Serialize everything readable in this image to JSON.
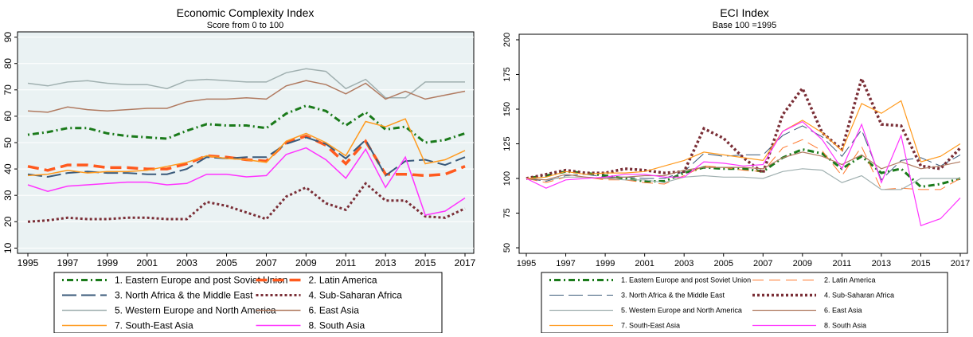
{
  "chart_data": [
    {
      "type": "line",
      "title": "Economic Complexity Index",
      "subtitle": "Score from 0 to 100",
      "x": [
        1995,
        1996,
        1997,
        1998,
        1999,
        2000,
        2001,
        2002,
        2003,
        2004,
        2005,
        2006,
        2007,
        2008,
        2009,
        2010,
        2011,
        2012,
        2013,
        2014,
        2015,
        2016,
        2017
      ],
      "xlim": [
        1995,
        2017
      ],
      "xticks": [
        1995,
        1997,
        1999,
        2001,
        2003,
        2005,
        2007,
        2009,
        2011,
        2013,
        2015,
        2017
      ],
      "ylim": [
        8,
        92
      ],
      "yticks": [
        10,
        20,
        30,
        40,
        50,
        60,
        70,
        80,
        90
      ],
      "grid": true,
      "series": [
        {
          "name": "1. Eastern Europe and post Soviet Union",
          "color": "#1a7a1a",
          "dash": "2 4 8 4",
          "width": 3,
          "values": [
            53,
            54,
            55.5,
            55.5,
            53.5,
            52.5,
            52,
            51.5,
            54.5,
            57,
            56.5,
            56.5,
            55.5,
            61,
            64,
            62,
            56.5,
            61.5,
            55,
            56,
            50,
            51,
            53.5
          ]
        },
        {
          "name": "2. Latin America",
          "color": "#ff5a1e",
          "dash": "14 7",
          "width": 3.5,
          "values": [
            41,
            39.5,
            41.5,
            41.5,
            40.5,
            40.5,
            40,
            40,
            42,
            45,
            44.5,
            43.5,
            43,
            50,
            52.5,
            49,
            42,
            50.5,
            38,
            38,
            37.5,
            38,
            41
          ]
        },
        {
          "name": "3. North Africa & the Middle East",
          "color": "#3a5a7a",
          "dash": "18 6",
          "width": 2,
          "values": [
            38,
            37,
            38.5,
            39,
            38.5,
            38.5,
            38,
            38,
            40,
            44.5,
            44,
            44.5,
            44.5,
            49.5,
            52,
            49.5,
            44,
            51,
            37.5,
            43,
            43.5,
            41.5,
            44.5
          ]
        },
        {
          "name": "4. Sub-Saharan Africa",
          "color": "#7a2e36",
          "dash": "3 3",
          "width": 3,
          "values": [
            20,
            20.5,
            21.5,
            21,
            21,
            21.5,
            21.5,
            21,
            21,
            27.5,
            26,
            23.5,
            21,
            29.5,
            33,
            27,
            24.5,
            34.5,
            28,
            28,
            22,
            21.5,
            25
          ]
        },
        {
          "name": "5. Western Europe and North America",
          "color": "#a0b0b0",
          "dash": "",
          "width": 1.5,
          "values": [
            72.5,
            71.5,
            73,
            73.5,
            72.5,
            72,
            72,
            70.5,
            73.5,
            74,
            73.5,
            73,
            73,
            76.5,
            78,
            77,
            70.5,
            74,
            67,
            67,
            73,
            73,
            73
          ]
        },
        {
          "name": "6. East Asia",
          "color": "#b07a60",
          "dash": "",
          "width": 1.5,
          "values": [
            62,
            61.5,
            63.5,
            62.5,
            62,
            62.5,
            63,
            63,
            65.5,
            66.5,
            66.5,
            67,
            66.5,
            71.5,
            73.5,
            72,
            68.5,
            72.5,
            66.5,
            69.5,
            66.5,
            68,
            69.5
          ]
        },
        {
          "name": "7. South-East Asia",
          "color": "#ff9a1e",
          "dash": "",
          "width": 1.5,
          "values": [
            37.5,
            38,
            39.5,
            38.5,
            39,
            39,
            39.5,
            41,
            42.5,
            45,
            44,
            43.5,
            42.5,
            50.5,
            53.5,
            50,
            45,
            58,
            56,
            59,
            42,
            43.5,
            47
          ]
        },
        {
          "name": "8. South Asia",
          "color": "#ff33ff",
          "dash": "",
          "width": 1.5,
          "values": [
            34,
            31.5,
            33.5,
            34,
            34.5,
            35,
            35,
            34,
            34.5,
            38,
            38,
            37,
            37.5,
            45.5,
            48,
            43.5,
            36.5,
            47.5,
            33,
            44.5,
            22.5,
            24,
            29
          ]
        }
      ]
    },
    {
      "type": "line",
      "title": "ECI Index",
      "subtitle": "Base 100 =1995",
      "x": [
        1995,
        1996,
        1997,
        1998,
        1999,
        2000,
        2001,
        2002,
        2003,
        2004,
        2005,
        2006,
        2007,
        2008,
        2009,
        2010,
        2011,
        2012,
        2013,
        2014,
        2015,
        2016,
        2017
      ],
      "xlim": [
        1995,
        2017
      ],
      "xticks": [
        1995,
        1997,
        1999,
        2001,
        2003,
        2005,
        2007,
        2009,
        2011,
        2013,
        2015,
        2017
      ],
      "ylim": [
        46,
        204
      ],
      "yticks": [
        50,
        75,
        100,
        125,
        150,
        175,
        200
      ],
      "grid": false,
      "series": [
        {
          "name": "1. Eastern Europe and post Soviet Union",
          "color": "#1a7a1a",
          "dash": "2 4 8 4",
          "width": 3,
          "values": [
            100,
            102,
            105,
            104,
            102,
            100,
            98,
            98,
            104,
            108,
            107,
            107,
            105,
            115,
            121,
            118,
            107,
            116,
            104,
            107,
            94,
            96,
            100
          ]
        },
        {
          "name": "2. Latin America",
          "color": "#ff7a30",
          "dash": "14 7",
          "width": 1,
          "values": [
            100,
            97,
            101,
            101,
            99,
            99,
            97,
            96,
            102,
            109,
            108,
            106,
            105,
            122,
            128,
            120,
            102,
            123,
            92,
            93,
            92,
            92,
            100
          ]
        },
        {
          "name": "3. North Africa & the Middle East",
          "color": "#3a5a7a",
          "dash": "18 6",
          "width": 1,
          "values": [
            100,
            98,
            102,
            103,
            101,
            101,
            100,
            100,
            105,
            118,
            116,
            117,
            117,
            131,
            138,
            130,
            116,
            135,
            99,
            113,
            115,
            109,
            117
          ]
        },
        {
          "name": "4. Sub-Saharan Africa",
          "color": "#7a2e36",
          "dash": "3 3",
          "width": 3.5,
          "values": [
            100,
            103,
            106,
            104,
            104,
            107,
            106,
            104,
            105,
            136,
            129,
            115,
            104,
            146,
            165,
            133,
            121,
            172,
            139,
            138,
            109,
            107,
            122
          ]
        },
        {
          "name": "5. Western Europe and North America",
          "color": "#a0b0b0",
          "dash": "",
          "width": 1.2,
          "values": [
            100,
            99,
            101,
            101,
            100,
            99,
            99,
            97,
            101,
            102,
            101,
            101,
            100,
            105,
            107,
            106,
            97,
            102,
            92,
            92,
            100,
            100,
            100
          ]
        },
        {
          "name": "6. East Asia",
          "color": "#b07a60",
          "dash": "",
          "width": 1.2,
          "values": [
            100,
            99,
            103,
            101,
            100,
            101,
            102,
            102,
            106,
            108,
            108,
            108,
            107,
            115,
            119,
            116,
            110,
            117,
            107,
            112,
            107,
            109,
            112
          ]
        },
        {
          "name": "7. South-East Asia",
          "color": "#ff9a1e",
          "dash": "",
          "width": 1.2,
          "values": [
            100,
            101,
            105,
            103,
            104,
            104,
            105,
            109,
            113,
            119,
            117,
            115,
            113,
            134,
            142,
            133,
            120,
            154,
            147,
            156,
            112,
            116,
            125
          ]
        },
        {
          "name": "8. South Asia",
          "color": "#ff33ff",
          "dash": "",
          "width": 1.2,
          "values": [
            100,
            93,
            99,
            100,
            101,
            103,
            103,
            101,
            101,
            112,
            111,
            109,
            110,
            134,
            141,
            128,
            107,
            139,
            97,
            131,
            66,
            71,
            86
          ]
        }
      ]
    }
  ]
}
